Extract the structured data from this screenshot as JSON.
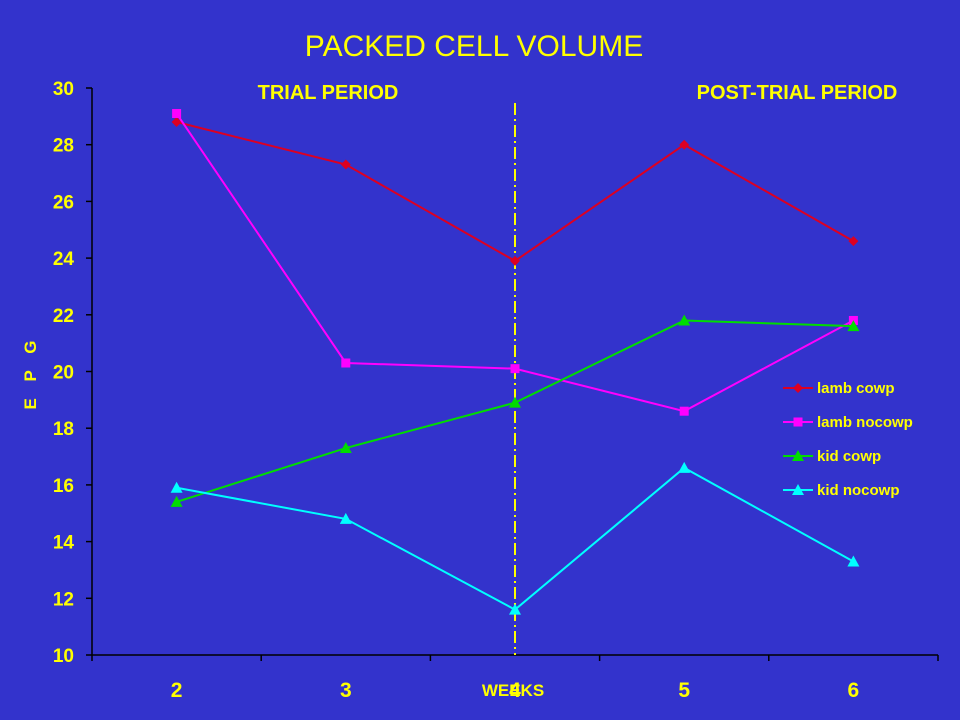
{
  "chart_data": {
    "type": "line",
    "title": "PACKED CELL VOLUME",
    "xlabel": "WEEKS",
    "ylabel": "E P G",
    "categories": [
      "2",
      "3",
      "4",
      "5",
      "6"
    ],
    "ylim": [
      10,
      30
    ],
    "yticks": [
      "10",
      "12",
      "14",
      "16",
      "18",
      "20",
      "22",
      "24",
      "26",
      "28",
      "30"
    ],
    "grid": false,
    "legend_position": "right",
    "annotations": [
      "TRIAL PERIOD",
      "POST-TRIAL PERIOD"
    ],
    "divider_at_category": "4",
    "series": [
      {
        "name": "lamb cowp",
        "values": [
          28.8,
          27.3,
          23.9,
          28.0,
          24.6
        ],
        "color": "#dd0022",
        "marker": "diamond"
      },
      {
        "name": "lamb nocowp",
        "values": [
          29.1,
          20.3,
          20.1,
          18.6,
          21.8
        ],
        "color": "#ff00ff",
        "marker": "square"
      },
      {
        "name": "kid cowp",
        "values": [
          15.4,
          17.3,
          18.9,
          21.8,
          21.6
        ],
        "color": "#00dd00",
        "marker": "triangle"
      },
      {
        "name": "kid nocowp",
        "values": [
          15.9,
          14.8,
          11.6,
          16.6,
          13.3
        ],
        "color": "#00ffff",
        "marker": "triangle"
      }
    ]
  },
  "colors": {
    "background": "#3333cc",
    "text": "#ffff00",
    "axis": "#000000",
    "divider": "#ffff00"
  }
}
